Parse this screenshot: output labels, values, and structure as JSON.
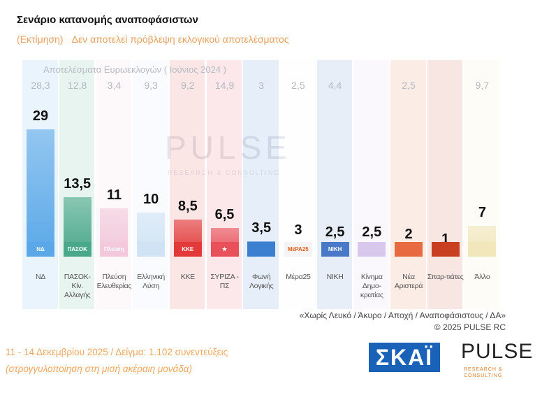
{
  "title": "Σενάριο κατανομής αναποφάσιστων",
  "subtitle_a": "(Εκτίμηση)",
  "subtitle_b": "Δεν αποτελεί πρόβλεψη εκλογικού αποτελέσματος",
  "watermark": "PULSE",
  "watermark_sub": "RESEARCH & CONSULTING",
  "chart_data": {
    "type": "bar",
    "title": "Σενάριο κατανομής αναποφάσιστων",
    "previous_label": "Αποτελέσματα Ευρωεκλογών  ( Ιούνιος 2024 )",
    "categories": [
      "ΝΔ",
      "ΠΑΣΟΚ-Κίν. Αλλαγής",
      "Πλεύση Ελευθερίας",
      "Ελληνική Λύση",
      "ΚΚΕ",
      "ΣΥΡΙΖΑ - ΠΣ",
      "Φωνή Λογικής",
      "Μέρα25",
      "ΝΙΚΗ",
      "Κίνημα Δημο-κρατίας",
      "Νέα Αριστερά",
      "Σπαρ-τιάτες",
      "Άλλο"
    ],
    "values": [
      29,
      13.5,
      11,
      10,
      8.5,
      6.5,
      3.5,
      3,
      2.5,
      2.5,
      2,
      1,
      7
    ],
    "value_labels": [
      "29",
      "13,5",
      "11",
      "10",
      "8,5",
      "6,5",
      "3,5",
      "3",
      "2,5",
      "2,5",
      "2",
      "1",
      "7"
    ],
    "previous": [
      "28,3",
      "12,8",
      "3,4",
      "9,3",
      "9,2",
      "14,9",
      "3",
      "2,5",
      "4,4",
      "",
      "2,5",
      "",
      "9,7"
    ],
    "logos": [
      "ΝΔ",
      "ΠΑΣΟΚ",
      "Πλεύση",
      "",
      "ΚΚΕ",
      "★",
      "",
      "ΜέΡΑ25",
      "ΝΙΚΗ",
      "",
      "",
      "",
      ""
    ],
    "colors": [
      "#5aa8e8",
      "#4aa88a",
      "#f2c8da",
      "#cfe3f5",
      "#e23a3a",
      "#e8505a",
      "#3a7fd0",
      "#f4f4f4",
      "#4a78c8",
      "#d8c8ec",
      "#e86a40",
      "#c84020",
      "#f2e6bc"
    ],
    "ylim": [
      0,
      29
    ]
  },
  "notes": [
    "«Χωρίς Λευκό / Άκυρο / Αποχή / Αναποφάσιστους / ΔΑ»",
    "©  2025  PULSE RC"
  ],
  "footer": [
    "11 - 14 Δεκεμβρίου 2025  /  Δείγμα:  1.102 συνεντεύξεις",
    "(στρογγυλοποίηση στη μισή ακέραιη μονάδα)"
  ],
  "brand_skai": "ΣΚΑΪ",
  "brand_pulse": "PULSE",
  "brand_pulse_sub": "RESEARCH & CONSULTING"
}
